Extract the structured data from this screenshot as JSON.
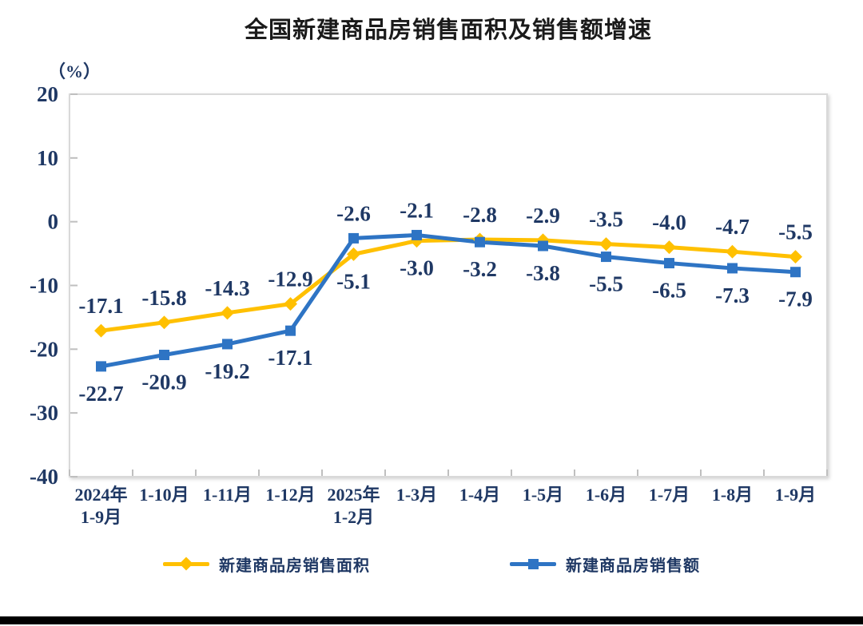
{
  "chart_data": {
    "type": "line",
    "title": "全国新建商品房销售面积及销售额增速",
    "unit_label": "（%）",
    "xlabel": "",
    "ylabel": "（%）",
    "ylim": [
      -40,
      20
    ],
    "yticks": [
      20,
      10,
      0,
      -10,
      -20,
      -30,
      -40
    ],
    "grid": false,
    "legend_position": "bottom",
    "categories": [
      "2024年\n1-9月",
      "1-10月",
      "1-11月",
      "1-12月",
      "2025年\n1-2月",
      "1-3月",
      "1-4月",
      "1-5月",
      "1-6月",
      "1-7月",
      "1-8月",
      "1-9月"
    ],
    "series": [
      {
        "name": "新建商品房销售面积",
        "marker": "diamond",
        "color": "#FFC000",
        "values": [
          -17.1,
          -15.8,
          -14.3,
          -12.9,
          -5.1,
          -3.0,
          -2.8,
          -2.9,
          -3.5,
          -4.0,
          -4.7,
          -5.5
        ],
        "labels": [
          "-17.1",
          "-15.8",
          "-14.3",
          "-12.9",
          "-5.1",
          "-3.0",
          "-2.8",
          "-2.9",
          "-3.5",
          "-4.0",
          "-4.7",
          "-5.5"
        ]
      },
      {
        "name": "新建商品房销售额",
        "marker": "square",
        "color": "#2E74C4",
        "values": [
          -22.7,
          -20.9,
          -19.2,
          -17.1,
          -2.6,
          -2.1,
          -3.2,
          -3.8,
          -5.5,
          -6.5,
          -7.3,
          -7.9
        ],
        "labels": [
          "-22.7",
          "-20.9",
          "-19.2",
          "-17.1",
          "-2.6",
          "-2.1",
          "-3.2",
          "-3.8",
          "-5.5",
          "-6.5",
          "-7.3",
          "-7.9"
        ]
      }
    ],
    "colors": {
      "axis_border": "#D9D9D9",
      "tick": "#BFBFBF",
      "label_text": "#1F3864",
      "title_text": "#1A1A1A"
    }
  }
}
